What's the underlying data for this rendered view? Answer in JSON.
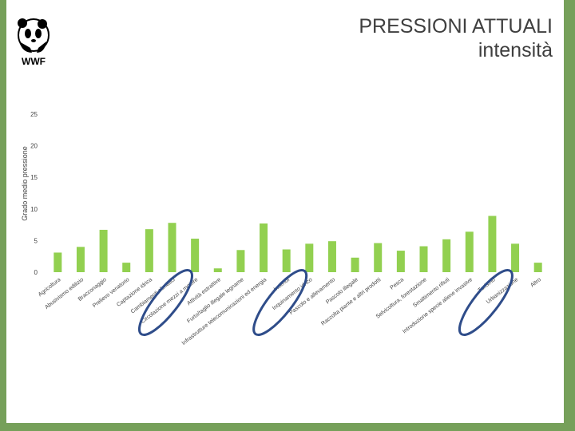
{
  "title": {
    "line1": "PRESSIONI ATTUALI",
    "line2": "intensità"
  },
  "logo": {
    "text": "WWF",
    "icon": "panda-icon"
  },
  "colors": {
    "bar": "#92d050",
    "frame": "#76a05a",
    "circle": "#2f4d8a",
    "title": "#3f3f3f"
  },
  "chart_data": {
    "type": "bar",
    "title": "",
    "xlabel": "",
    "ylabel": "Grado medio pressione",
    "ylim": [
      0,
      25
    ],
    "yticks": [
      0,
      5,
      10,
      15,
      20,
      25
    ],
    "grid": false,
    "categories": [
      "Agricoltura",
      "Abusivismo edilizio",
      "Bracconaggio",
      "Prelievo venatorio",
      "Captazione idrica",
      "Cambiamenti climatici",
      "Circolazione mezzi a motore",
      "Attività estrattive",
      "Furto/taglio illegale legname",
      "Infrastrutture telecomunicazioni ed energia",
      "Incendi",
      "Inquinamento idrico",
      "Pascolo e allevamento",
      "Pascolo illegale",
      "Raccolta piante e altri prodotti",
      "Pesca",
      "Selvicoltura, forestazione",
      "Smaltimento rifiuti",
      "Introduzione specie aliene invasive",
      "Turismo",
      "Urbanizzazione",
      "Altro"
    ],
    "values": [
      3.1,
      4.0,
      6.7,
      1.5,
      6.8,
      7.8,
      5.3,
      0.6,
      3.5,
      7.7,
      3.6,
      4.5,
      4.9,
      2.3,
      4.6,
      3.4,
      4.1,
      5.2,
      6.4,
      8.9,
      4.5,
      1.5
    ],
    "highlighted": [
      "Cambiamenti climatici",
      "Incendi",
      "Turismo"
    ]
  }
}
